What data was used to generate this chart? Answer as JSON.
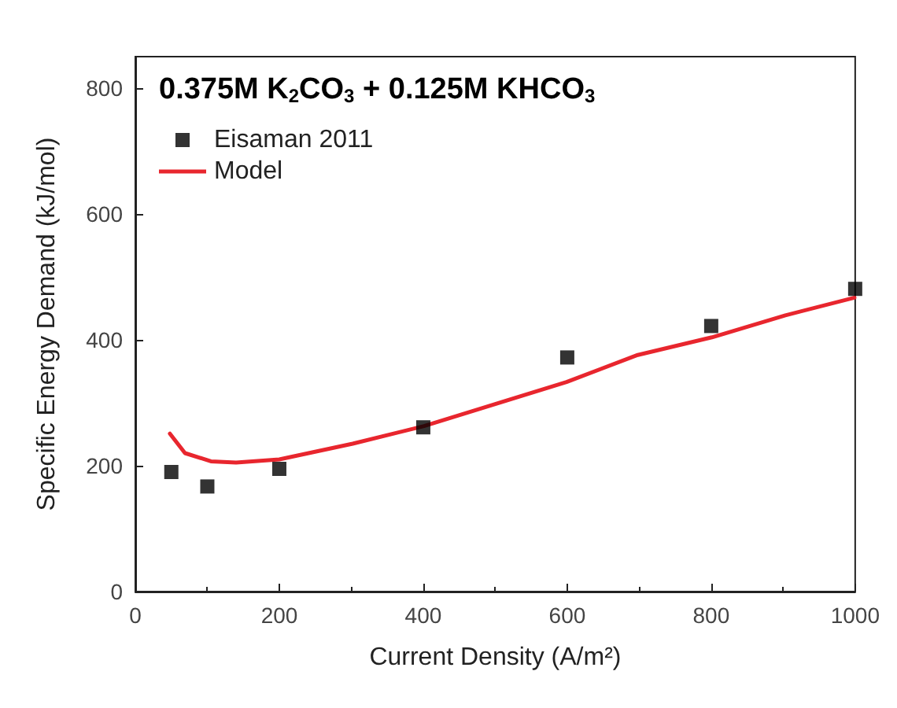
{
  "chart_data": {
    "type": "scatter",
    "title": "0.375M K$_{2}$CO$_{3}$ + 0.125M KHCO$_{3}$",
    "xlabel": "Current Density (A/m²)",
    "ylabel": "Specific Energy Demand (kJ/mol)",
    "xlim": [
      0,
      1000
    ],
    "xticks": [
      0,
      200,
      400,
      600,
      800,
      1000
    ],
    "ylim": [
      0,
      850
    ],
    "yticks": [
      0,
      200,
      400,
      600,
      800
    ],
    "grid": false,
    "legend": "top left",
    "series": [
      {
        "name": "Eisaman 2011",
        "marker": "square",
        "color": "#000000",
        "x": [
          50,
          100,
          200,
          400,
          600,
          800,
          1000
        ],
        "values": [
          190,
          167,
          195,
          261,
          372,
          422,
          481
        ]
      },
      {
        "name": "Model",
        "type": "line",
        "marker": "none",
        "line_style": "solid",
        "color": "#e8262e",
        "x": [
          48,
          69,
          105,
          140,
          200,
          302,
          401,
          500,
          599,
          698,
          801,
          903,
          999
        ],
        "values": [
          251,
          220,
          207,
          205,
          210,
          235,
          263,
          298,
          333,
          376,
          404,
          439,
          467
        ]
      }
    ]
  }
}
